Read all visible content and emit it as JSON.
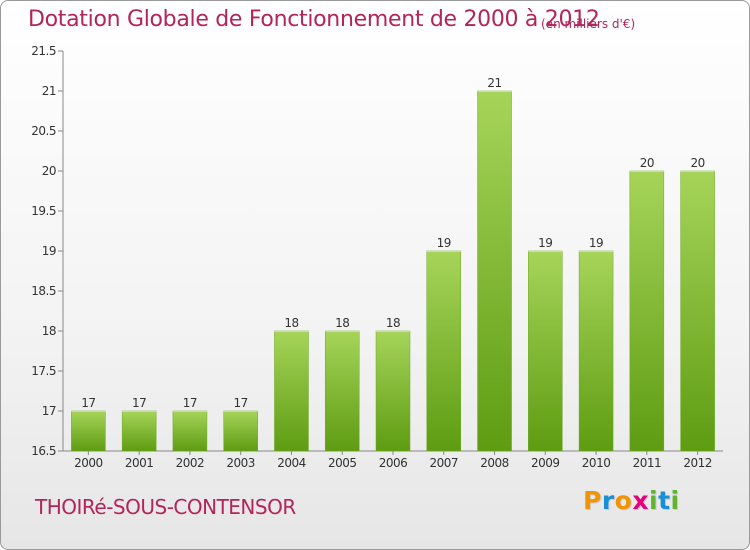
{
  "header": {
    "title": "Dotation Globale de Fonctionnement de 2000 à 2012",
    "unit": "(en milliers d'€)"
  },
  "footer": {
    "place": "THOIRé-SOUS-CONTENSOR",
    "logo_letters": [
      "P",
      "r",
      "o",
      "x",
      "i",
      "t",
      "i"
    ],
    "logo_colors": [
      "#f29400",
      "#1b8fd6",
      "#f29400",
      "#e5007e",
      "#62b32e",
      "#1b8fd6",
      "#62b32e"
    ]
  },
  "chart_data": {
    "type": "bar",
    "title": "Dotation Globale de Fonctionnement de 2000 à 2012",
    "subtitle": "(en milliers d'€)",
    "xlabel": "",
    "ylabel": "",
    "categories": [
      "2000",
      "2001",
      "2002",
      "2003",
      "2004",
      "2005",
      "2006",
      "2007",
      "2008",
      "2009",
      "2010",
      "2011",
      "2012"
    ],
    "values": [
      17,
      17,
      17,
      17,
      18,
      18,
      18,
      19,
      21,
      19,
      19,
      20,
      20
    ],
    "data_labels": [
      "17",
      "17",
      "17",
      "17",
      "18",
      "18",
      "18",
      "19",
      "21",
      "19",
      "19",
      "20",
      "20"
    ],
    "ylim": [
      16.5,
      21.5
    ],
    "yticks": [
      16.5,
      17,
      17.5,
      18,
      18.5,
      19,
      19.5,
      20,
      20.5,
      21,
      21.5
    ],
    "ytick_labels": [
      "16.5",
      "17",
      "17.5",
      "18",
      "18.5",
      "19",
      "19.5",
      "20",
      "20.5",
      "21",
      "21.5"
    ],
    "grid": false,
    "bar_color_top": "#a6d45a",
    "bar_color_bottom": "#5e9c12"
  }
}
